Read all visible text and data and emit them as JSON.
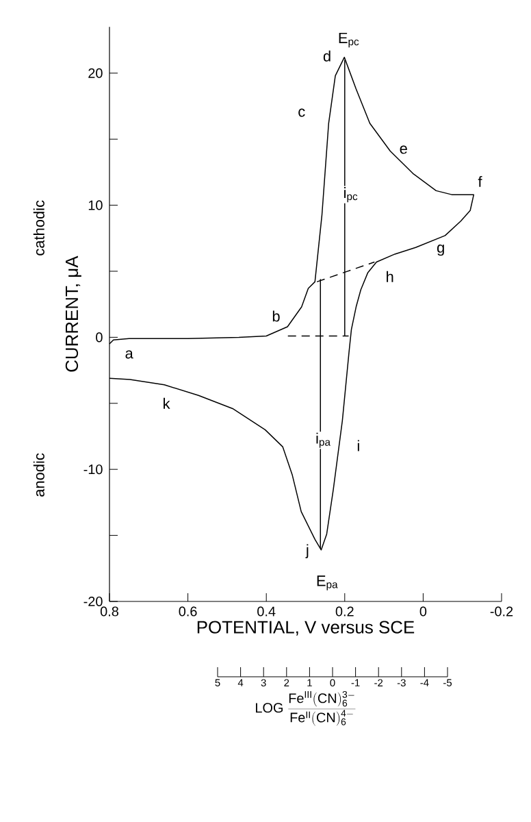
{
  "chart_data": {
    "type": "line",
    "xlabel": "POTENTIAL, V versus SCE",
    "ylabel": "CURRENT, μA",
    "xlim": [
      0.8,
      -0.2
    ],
    "xticks": [
      0.8,
      0.6,
      0.4,
      0.2,
      0,
      -0.2
    ],
    "ylim": [
      -20,
      23.5
    ],
    "yticks": [
      -20,
      {
        "value": -15,
        "label": null
      },
      -10,
      {
        "value": -5,
        "label": null
      },
      0,
      {
        "value": 5,
        "label": null
      },
      10,
      {
        "value": 15,
        "label": null
      },
      20
    ],
    "x2lim": [
      5,
      -5
    ],
    "x2ticks": [
      5,
      4,
      3,
      2,
      1,
      0,
      -1,
      -2,
      -3,
      -4,
      -5
    ],
    "x2label": "\\mathrm{LOG}\\ \\frac{\\mathrm{Fe^{III}(CN)_6^{3-}}}{\\mathrm{Fe^{II}(CN)_6^{4-}}}",
    "series": [
      {
        "color": "#000000",
        "line_style": "solid",
        "x": [
          0.8,
          0.79,
          0.75,
          0.6,
          0.47,
          0.4,
          0.346,
          0.31,
          0.293,
          0.276,
          0.258,
          0.241,
          0.224,
          0.201,
          0.171,
          0.136,
          0.084,
          0.026,
          -0.033,
          -0.073,
          -0.126,
          -0.129,
          -0.12,
          -0.096,
          -0.056,
          0.019,
          0.072,
          0.119,
          0.141,
          0.159,
          0.171,
          0.183,
          0.189,
          0.206,
          0.229,
          0.246,
          0.26,
          0.276,
          0.311,
          0.334,
          0.358,
          0.403,
          0.486,
          0.573,
          0.66,
          0.748,
          0.8
        ],
        "values": [
          -0.5,
          -0.2,
          -0.1,
          -0.1,
          0,
          0.1,
          0.8,
          2.3,
          3.7,
          4.2,
          9.3,
          16.2,
          19.8,
          21.2,
          18.8,
          16.2,
          14.1,
          12.4,
          11.1,
          10.8,
          10.8,
          10.8,
          9.6,
          8.8,
          7.7,
          6.8,
          6.3,
          5.7,
          4.9,
          3.6,
          2.3,
          0.6,
          -1.1,
          -6.3,
          -11.5,
          -14.9,
          -16.1,
          -15.3,
          -13.2,
          -10.4,
          -8.3,
          -7.0,
          -5.4,
          -4.4,
          -3.6,
          -3.2,
          -3.1
        ]
      },
      {
        "color": "#000000",
        "line_style": "dashed",
        "x": [
          0.345,
          0.19
        ],
        "values": [
          0.1,
          0.1
        ]
      },
      {
        "color": "#000000",
        "line_style": "dashed",
        "x": [
          0.271,
          0.124
        ],
        "values": [
          4.2,
          5.7
        ]
      },
      {
        "color": "#000000",
        "line_style": "solid",
        "x": [
          0.2,
          0.2
        ],
        "values": [
          0.1,
          21.0
        ]
      },
      {
        "color": "#000000",
        "line_style": "solid",
        "x": [
          0.262,
          0.262
        ],
        "values": [
          4.4,
          -16.0
        ]
      }
    ],
    "annotations": [
      "cathodic",
      "anodic",
      {
        "text": "a",
        "x": 0.75,
        "y": -1.3
      },
      {
        "text": "b",
        "x": 0.375,
        "y": 1.6
      },
      {
        "text": "c",
        "x": 0.31,
        "y": 17
      },
      {
        "text": "d",
        "x": 0.245,
        "y": 21.3
      },
      {
        "text": "E$_{pc}$",
        "x": 0.19,
        "y": 22.5
      },
      {
        "text": "e",
        "x": 0.05,
        "y": 14.2
      },
      {
        "text": "f",
        "x": -0.145,
        "y": 11.8
      },
      {
        "text": "g",
        "x": -0.045,
        "y": 6.6
      },
      {
        "text": "h",
        "x": 0.085,
        "y": 4.6
      },
      {
        "text": "i$_{pc}$",
        "x": 0.185,
        "y": 10.8
      },
      {
        "text": "i$_{pa}$",
        "x": 0.255,
        "y": -7.8
      },
      {
        "text": "i",
        "x": 0.165,
        "y": -8.2
      },
      {
        "text": "j",
        "x": 0.295,
        "y": -16.2
      },
      {
        "text": "E$_{pa}$",
        "x": 0.245,
        "y": -18.6
      },
      {
        "text": "k",
        "x": 0.655,
        "y": -5.0
      }
    ]
  }
}
